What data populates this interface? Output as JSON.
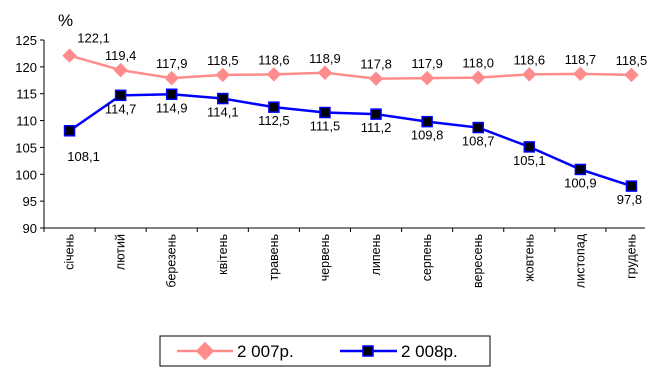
{
  "chart_data": {
    "type": "line",
    "ylabel": "%",
    "ylim": [
      90,
      125
    ],
    "yticks": [
      90,
      95,
      100,
      105,
      110,
      115,
      120,
      125
    ],
    "grid": false,
    "legend_position": "bottom",
    "categories": [
      "січень",
      "лютий",
      "березень",
      "квітень",
      "травень",
      "червень",
      "липень",
      "серпень",
      "вересень",
      "жовтень",
      "листопад",
      "грудень"
    ],
    "series": [
      {
        "name": "2 007р.",
        "color": "#ff8c8c",
        "marker": "diamond",
        "values": [
          122.1,
          119.4,
          117.9,
          118.5,
          118.6,
          118.9,
          117.8,
          117.9,
          118.0,
          118.6,
          118.7,
          118.5
        ],
        "labels": [
          "122,1",
          "119,4",
          "117,9",
          "118,5",
          "118,6",
          "118,9",
          "117,8",
          "117,9",
          "118,0",
          "118,6",
          "118,7",
          "118,5"
        ]
      },
      {
        "name": "2 008р.",
        "color": "#0000ff",
        "marker": "square",
        "values": [
          108.1,
          114.7,
          114.9,
          114.1,
          112.5,
          111.5,
          111.2,
          109.8,
          108.7,
          105.1,
          100.9,
          97.8
        ],
        "labels": [
          "108,1",
          "114,7",
          "114,9",
          "114,1",
          "112,5",
          "111,5",
          "111,2",
          "109,8",
          "108,7",
          "105,1",
          "100,9",
          "97,8"
        ]
      }
    ]
  }
}
